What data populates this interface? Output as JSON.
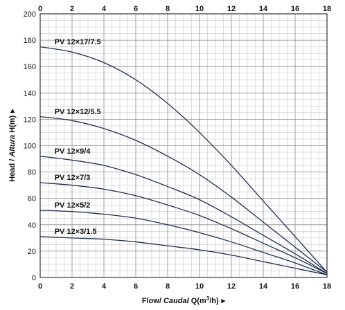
{
  "chart_data": {
    "type": "line",
    "title": "",
    "xlabel": {
      "prefix": "Flow/ ",
      "italic": "Caudal",
      "suffix": " Q(m",
      "sup": "3",
      "after": "/h)",
      "arrow": "▸"
    },
    "ylabel": {
      "prefix": "Head / ",
      "italic": "Altura",
      "suffix": " H(m)",
      "arrow": "▸"
    },
    "xlim": [
      0,
      18
    ],
    "ylim": [
      0,
      200
    ],
    "x_ticks": [
      0,
      2,
      4,
      6,
      8,
      10,
      12,
      14,
      16,
      18
    ],
    "top_ticks": [
      0,
      2,
      4,
      6,
      8,
      10,
      12,
      14,
      16,
      18
    ],
    "y_ticks": [
      0,
      20,
      40,
      60,
      80,
      100,
      120,
      140,
      160,
      180,
      200
    ],
    "grid": true,
    "x_minor_step": 0.5,
    "y_minor_step": 5,
    "series": [
      {
        "name": "PV 12×17/7.5",
        "x": [
          0,
          2,
          4,
          6,
          8,
          10,
          12,
          14,
          16,
          18
        ],
        "values": [
          175,
          171,
          163,
          150,
          132,
          110,
          85,
          58,
          31,
          4
        ]
      },
      {
        "name": "PV 12×12/5.5",
        "x": [
          0,
          2,
          4,
          6,
          8,
          10,
          12,
          14,
          16,
          18
        ],
        "values": [
          122,
          119,
          113,
          104,
          92,
          78,
          61,
          42,
          23,
          4
        ]
      },
      {
        "name": "PV 12×9/4",
        "x": [
          0,
          2,
          4,
          6,
          8,
          10,
          12,
          14,
          16,
          18
        ],
        "values": [
          92,
          89,
          85,
          78,
          69,
          59,
          46,
          32,
          18,
          3
        ]
      },
      {
        "name": "PV 12×7/3",
        "x": [
          0,
          2,
          4,
          6,
          8,
          10,
          12,
          14,
          16,
          18
        ],
        "values": [
          72,
          70,
          67,
          62,
          55,
          47,
          37,
          26,
          15,
          3
        ]
      },
      {
        "name": "PV 12×5/2",
        "x": [
          0,
          2,
          4,
          6,
          8,
          10,
          12,
          14,
          16,
          18
        ],
        "values": [
          51,
          50,
          48,
          45,
          40,
          34,
          27,
          19,
          11,
          2
        ]
      },
      {
        "name": "PV 12×3/1.5",
        "x": [
          0,
          2,
          4,
          6,
          8,
          10,
          12,
          14,
          16,
          18
        ],
        "values": [
          31,
          30,
          29,
          27,
          24,
          21,
          17,
          12,
          7,
          2
        ]
      }
    ],
    "label_at": [
      {
        "x": 0.9,
        "y": 177
      },
      {
        "x": 0.9,
        "y": 124
      },
      {
        "x": 0.9,
        "y": 94
      },
      {
        "x": 0.9,
        "y": 74
      },
      {
        "x": 0.9,
        "y": 53
      },
      {
        "x": 0.9,
        "y": 33
      }
    ],
    "colors": {
      "curve": "#1f2f4f",
      "grid_minor": "#bdbdbd",
      "grid_major": "#8a8a8a",
      "frame": "#333333",
      "text": "#111111"
    }
  }
}
